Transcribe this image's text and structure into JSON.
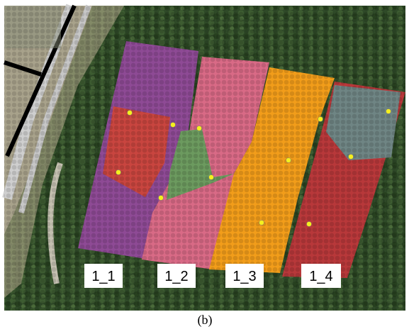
{
  "labels": [
    "1_1",
    "1_2",
    "1_3",
    "1_4"
  ],
  "caption": "(b)"
}
